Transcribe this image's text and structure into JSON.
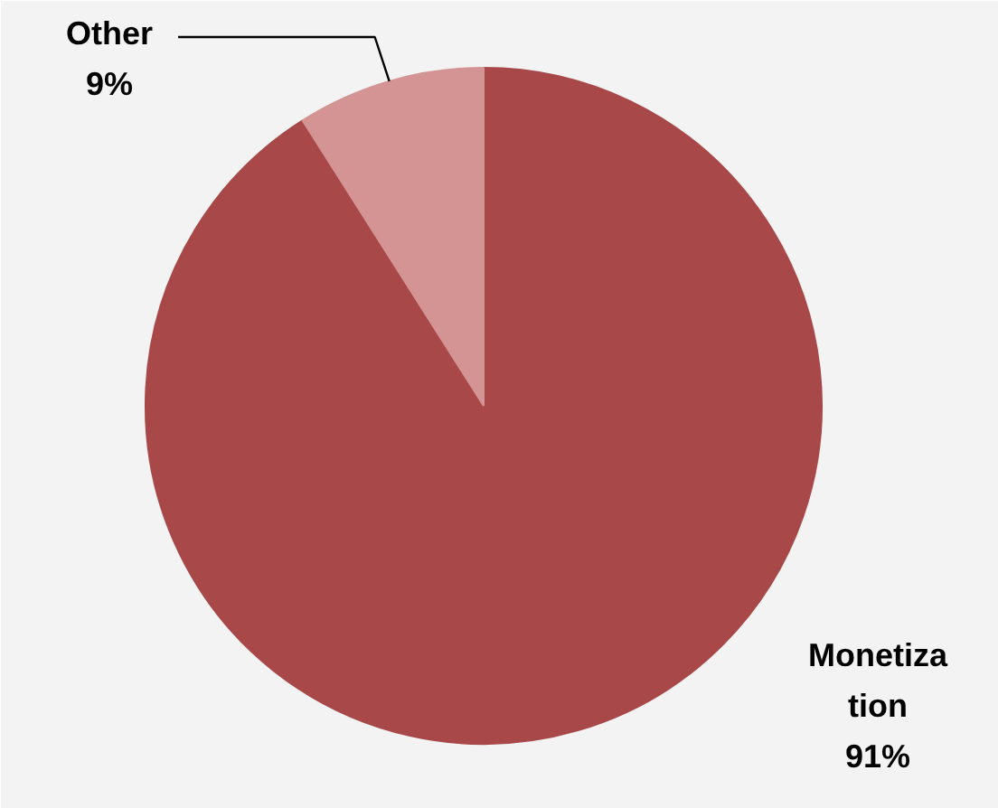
{
  "chart_data": {
    "type": "pie",
    "categories": [
      "Monetization",
      "Other"
    ],
    "values": [
      91,
      9
    ],
    "colors": [
      "#a84848",
      "#d49494"
    ],
    "value_labels": [
      "91%",
      "9%"
    ]
  }
}
